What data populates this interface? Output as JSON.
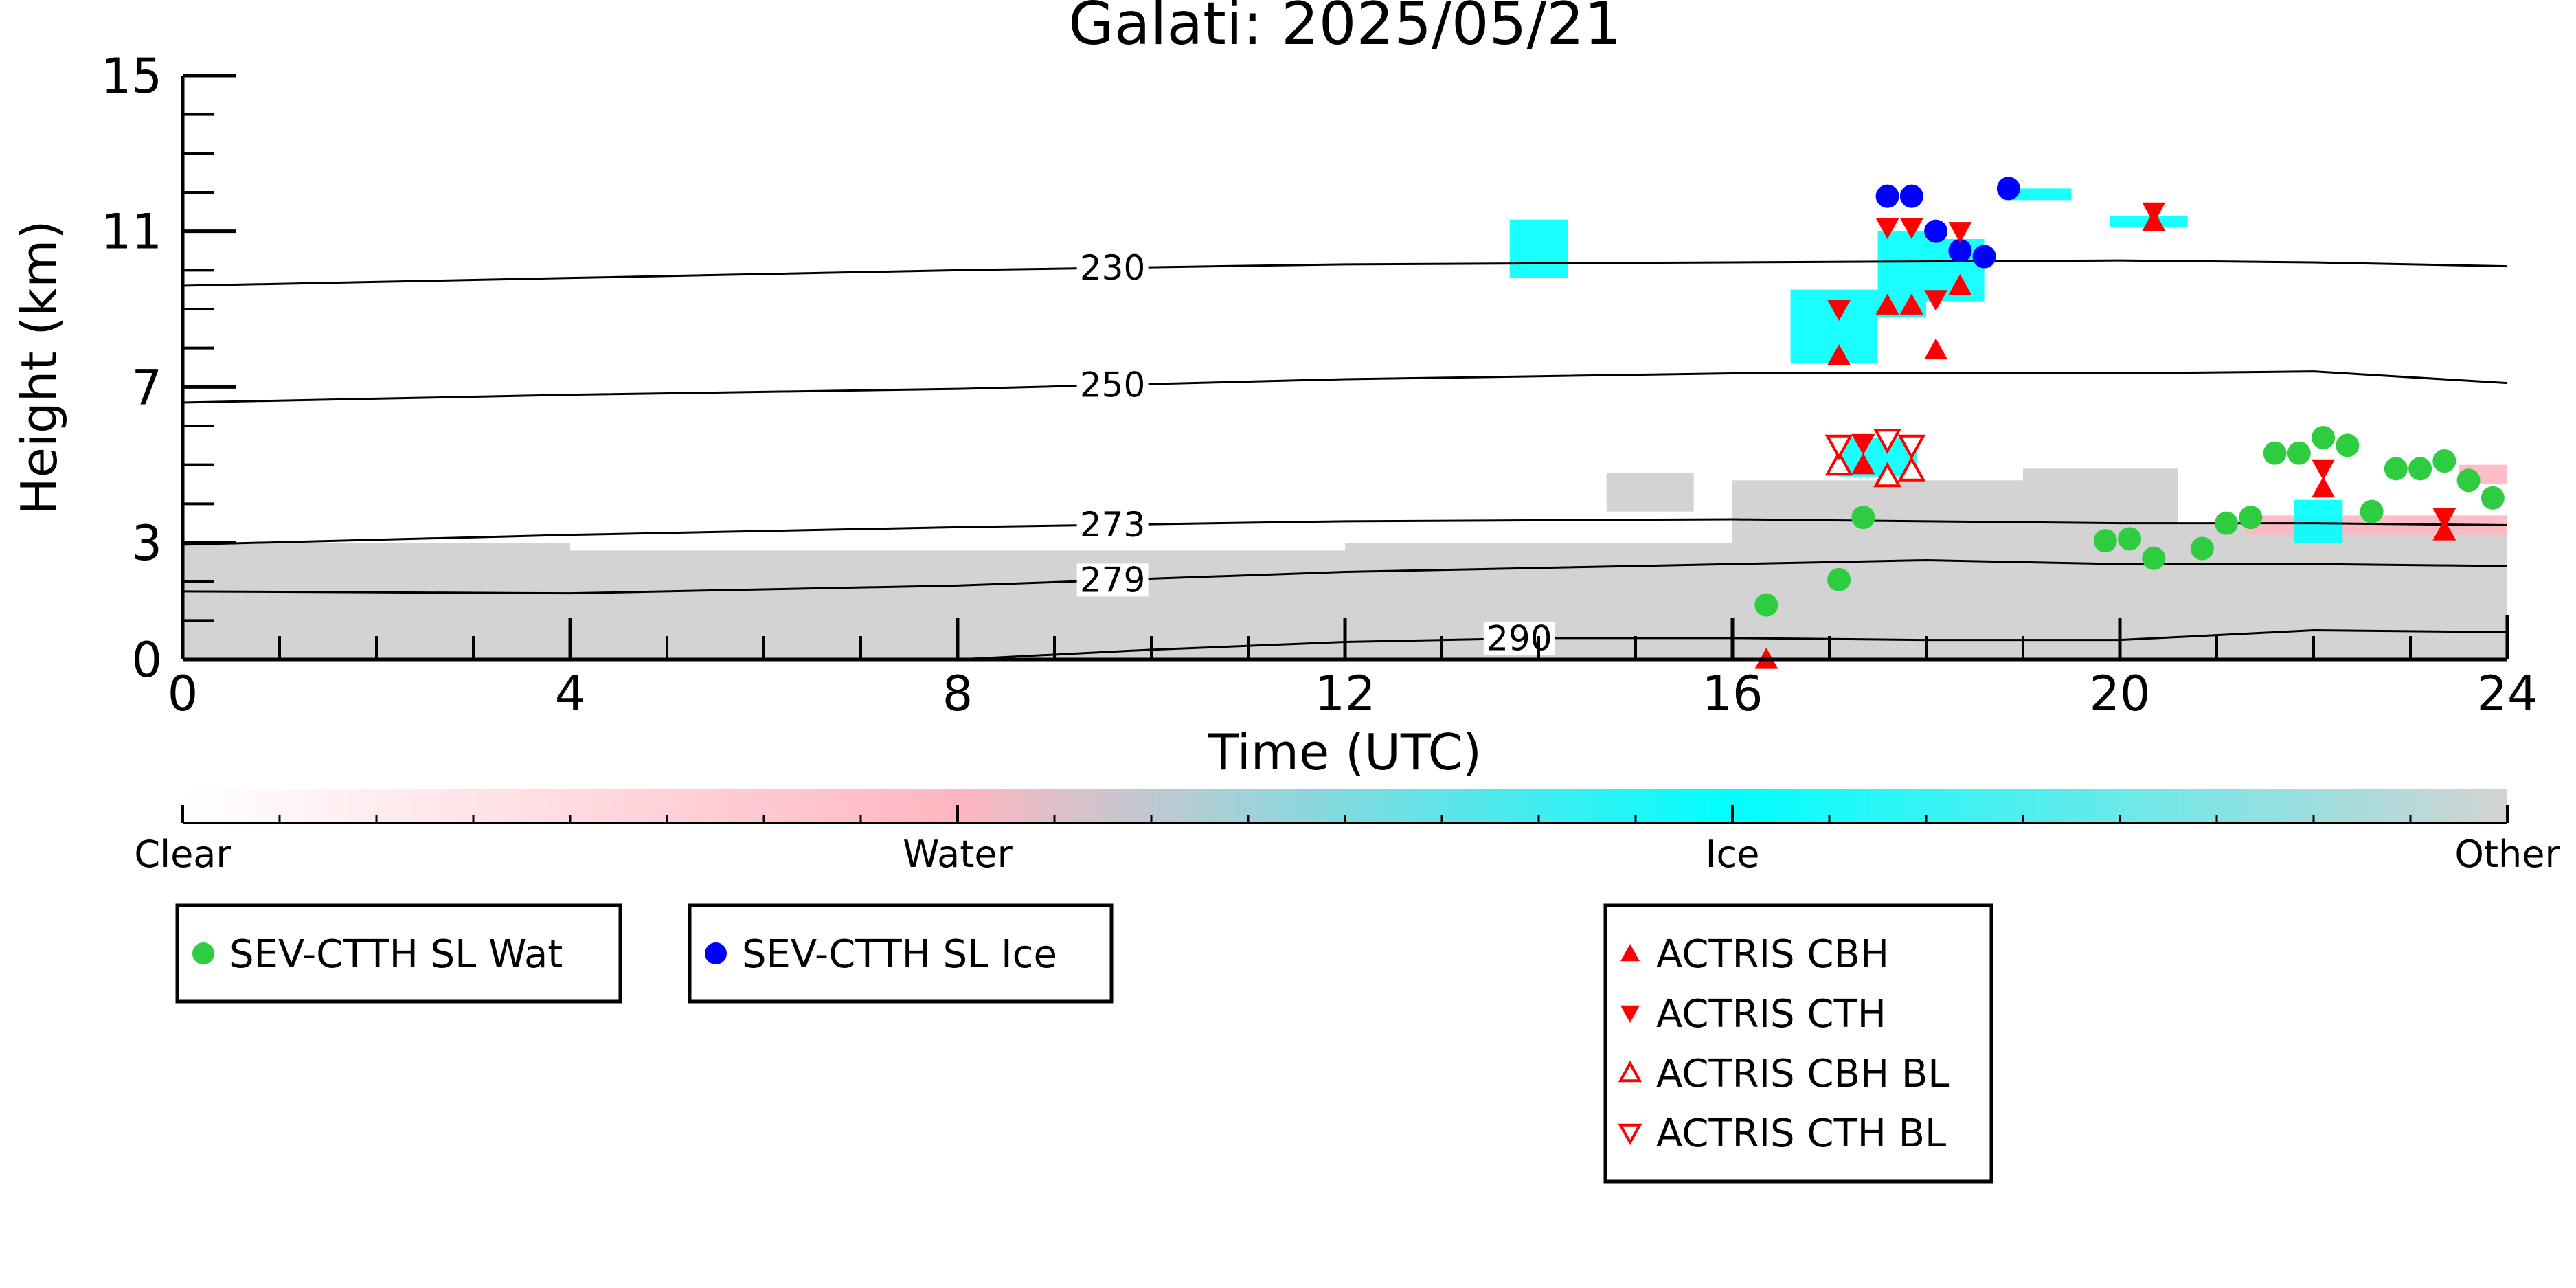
{
  "chart_data": {
    "type": "scatter",
    "title": "Galati: 2025/05/21",
    "xlabel": "Time (UTC)",
    "ylabel": "Height (km)",
    "xlim": [
      0,
      24
    ],
    "ylim": [
      0,
      15
    ],
    "x_ticks": [
      0,
      4,
      8,
      12,
      16,
      20,
      24
    ],
    "y_ticks": [
      0,
      3,
      7,
      11,
      15
    ],
    "colorbar": {
      "labels": [
        "Clear",
        "Water",
        "Ice",
        "Other"
      ],
      "positions": [
        0,
        1,
        2,
        3
      ],
      "colors": [
        "#ffffff",
        "#ffb6c1",
        "#00ffff",
        "#d3d3d3"
      ]
    },
    "isotherms": [
      {
        "label": "230",
        "label_x": 9.6,
        "x": [
          0,
          4,
          8,
          12,
          16,
          20,
          22,
          24
        ],
        "y": [
          9.6,
          9.8,
          10.0,
          10.15,
          10.2,
          10.25,
          10.2,
          10.1
        ]
      },
      {
        "label": "250",
        "label_x": 9.6,
        "x": [
          0,
          4,
          8,
          12,
          16,
          20,
          22,
          24
        ],
        "y": [
          6.6,
          6.8,
          6.95,
          7.2,
          7.35,
          7.35,
          7.4,
          7.1
        ]
      },
      {
        "label": "273",
        "label_x": 9.6,
        "x": [
          0,
          4,
          8,
          12,
          16,
          20,
          22,
          24
        ],
        "y": [
          2.95,
          3.2,
          3.4,
          3.55,
          3.6,
          3.5,
          3.5,
          3.45
        ]
      },
      {
        "label": "279",
        "label_x": 9.6,
        "x": [
          0,
          4,
          8,
          12,
          16,
          18,
          20,
          22,
          24
        ],
        "y": [
          1.75,
          1.7,
          1.9,
          2.25,
          2.45,
          2.55,
          2.45,
          2.45,
          2.4
        ]
      },
      {
        "label": "290",
        "label_x": 13.8,
        "x": [
          8,
          10,
          12,
          14,
          16,
          18,
          20,
          22,
          24
        ],
        "y": [
          0.0,
          0.25,
          0.45,
          0.55,
          0.55,
          0.5,
          0.5,
          0.75,
          0.7
        ]
      }
    ],
    "cloud_regions": [
      {
        "class": "Other",
        "x0": 0.0,
        "x1": 4.0,
        "y0": 0.0,
        "y1": 3.0
      },
      {
        "class": "Other",
        "x0": 4.0,
        "x1": 8.0,
        "y0": 0.0,
        "y1": 2.8
      },
      {
        "class": "Other",
        "x0": 8.0,
        "x1": 12.0,
        "y0": 0.0,
        "y1": 2.8
      },
      {
        "class": "Other",
        "x0": 12.0,
        "x1": 16.0,
        "y0": 0.0,
        "y1": 3.0
      },
      {
        "class": "Other",
        "x0": 16.0,
        "x1": 19.0,
        "y0": 0.0,
        "y1": 4.6
      },
      {
        "class": "Other",
        "x0": 19.0,
        "x1": 20.6,
        "y0": 0.0,
        "y1": 4.9
      },
      {
        "class": "Other",
        "x0": 20.6,
        "x1": 24.0,
        "y0": 0.0,
        "y1": 3.5
      },
      {
        "class": "Other",
        "x0": 14.7,
        "x1": 15.6,
        "y0": 3.8,
        "y1": 4.8
      },
      {
        "class": "Water",
        "x0": 21.3,
        "x1": 24.0,
        "y0": 3.2,
        "y1": 3.7
      },
      {
        "class": "Water",
        "x0": 23.5,
        "x1": 24.0,
        "y0": 4.5,
        "y1": 5.0
      },
      {
        "class": "Ice",
        "x0": 13.7,
        "x1": 14.3,
        "y0": 9.8,
        "y1": 11.3
      },
      {
        "class": "Ice",
        "x0": 16.6,
        "x1": 17.5,
        "y0": 7.6,
        "y1": 9.5
      },
      {
        "class": "Ice",
        "x0": 17.5,
        "x1": 18.0,
        "y0": 8.8,
        "y1": 11.0
      },
      {
        "class": "Ice",
        "x0": 18.0,
        "x1": 18.6,
        "y0": 9.2,
        "y1": 10.8
      },
      {
        "class": "Ice",
        "x0": 17.1,
        "x1": 17.9,
        "y0": 4.7,
        "y1": 5.7
      },
      {
        "class": "Ice",
        "x0": 21.8,
        "x1": 22.3,
        "y0": 3.0,
        "y1": 4.1
      },
      {
        "class": "Ice",
        "x0": 18.8,
        "x1": 19.5,
        "y0": 11.8,
        "y1": 12.1
      },
      {
        "class": "Ice",
        "x0": 19.9,
        "x1": 20.7,
        "y0": 11.1,
        "y1": 11.4
      }
    ],
    "series": [
      {
        "name": "SEV-CTTH SL Wat",
        "marker": "circle",
        "color": "#2ecc40",
        "x": [
          16.35,
          17.1,
          17.35,
          19.85,
          20.1,
          20.35,
          20.85,
          21.1,
          21.35,
          21.6,
          21.85,
          22.1,
          22.35,
          22.6,
          22.85,
          23.1,
          23.35,
          23.6,
          23.85
        ],
        "y": [
          1.4,
          2.05,
          3.65,
          3.05,
          3.1,
          2.6,
          2.85,
          3.5,
          3.65,
          5.3,
          5.3,
          5.7,
          5.5,
          3.8,
          4.9,
          4.9,
          5.1,
          4.6,
          4.15
        ]
      },
      {
        "name": "SEV-CTTH SL Ice",
        "marker": "circle",
        "color": "#0000ff",
        "x": [
          17.6,
          17.85,
          18.1,
          18.35,
          18.6,
          18.85
        ],
        "y": [
          11.9,
          11.9,
          11.0,
          10.5,
          10.35,
          12.1
        ]
      },
      {
        "name": "ACTRIS CBH",
        "marker": "triangle-up",
        "color": "#ff0000",
        "x": [
          16.35,
          17.1,
          17.35,
          17.6,
          17.85,
          18.1,
          18.35,
          20.35,
          22.1,
          23.35
        ],
        "y": [
          0.0,
          7.8,
          5.0,
          9.1,
          9.1,
          7.95,
          9.6,
          11.25,
          4.4,
          3.3
        ]
      },
      {
        "name": "ACTRIS CTH",
        "marker": "triangle-down",
        "color": "#ff0000",
        "x": [
          17.1,
          17.35,
          17.6,
          17.85,
          18.1,
          18.35,
          20.35,
          22.1,
          23.35
        ],
        "y": [
          9.0,
          5.55,
          11.1,
          11.1,
          9.25,
          11.0,
          11.5,
          4.9,
          3.65
        ]
      },
      {
        "name": "ACTRIS CBH BL",
        "marker": "triangle-up-open",
        "color": "#ff0000",
        "x": [
          17.1,
          17.6,
          17.85
        ],
        "y": [
          5.0,
          4.7,
          4.85
        ]
      },
      {
        "name": "ACTRIS CTH BL",
        "marker": "triangle-down-open",
        "color": "#ff0000",
        "x": [
          17.1,
          17.6,
          17.85
        ],
        "y": [
          5.5,
          5.65,
          5.5
        ]
      }
    ]
  }
}
